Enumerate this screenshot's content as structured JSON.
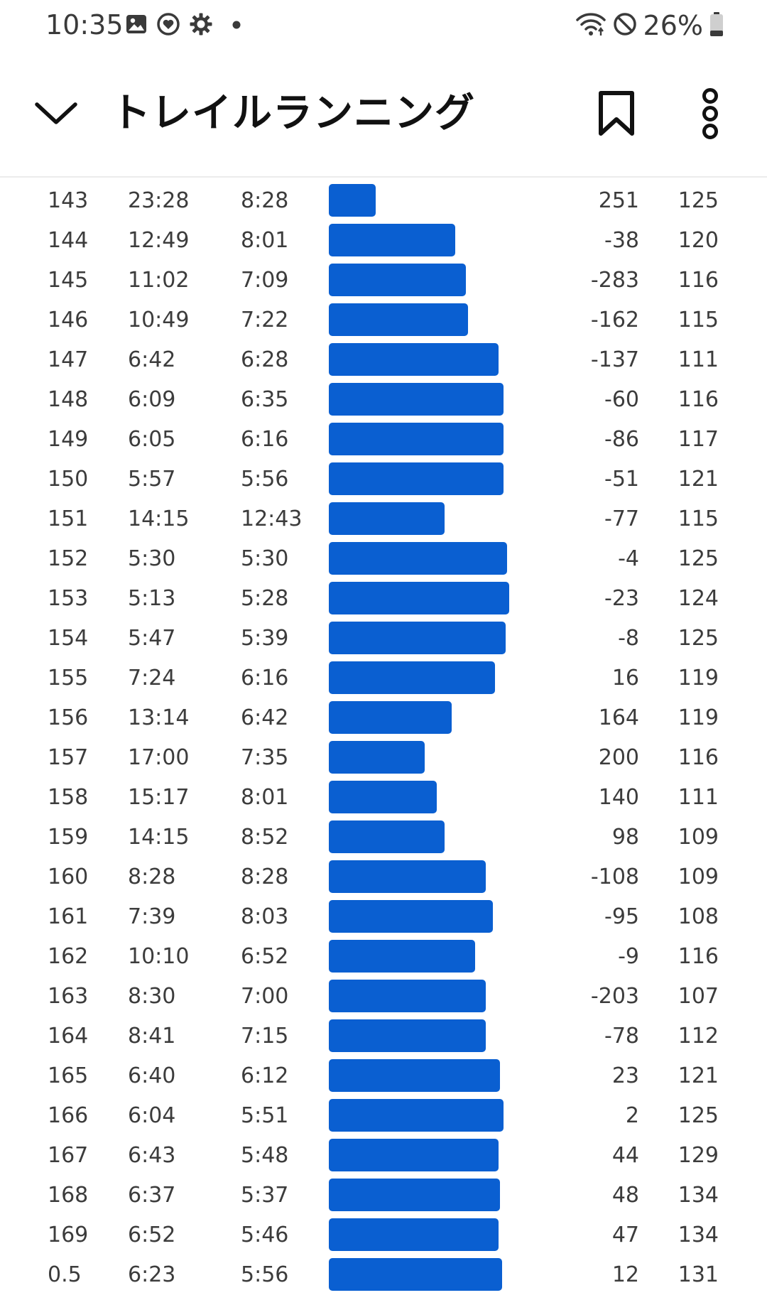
{
  "status_bar": {
    "time": "10:35",
    "left_icons": [
      "image-icon",
      "heart-app-icon",
      "settings-icon",
      "dot-icon"
    ],
    "right_icons": [
      "wifi-icon",
      "do-not-disturb-icon",
      "battery-icon"
    ],
    "battery": "26%",
    "battery_level": 0.26
  },
  "header": {
    "title": "トレイルランニング",
    "back_icon": "chevron-down-icon",
    "bookmark_icon": "bookmark-icon",
    "more_icon": "more-vertical-icon"
  },
  "colors": {
    "bar": "#0a5fd1",
    "text": "#3c3c3c",
    "title": "#111111"
  },
  "laps": [
    {
      "lap": "143",
      "time": "23:28",
      "pace": "8:28",
      "bar_fraction": 0.26,
      "elev": "251",
      "hr": "125"
    },
    {
      "lap": "144",
      "time": "12:49",
      "pace": "8:01",
      "bar_fraction": 0.7,
      "elev": "-38",
      "hr": "120"
    },
    {
      "lap": "145",
      "time": "11:02",
      "pace": "7:09",
      "bar_fraction": 0.76,
      "elev": "-283",
      "hr": "116"
    },
    {
      "lap": "146",
      "time": "10:49",
      "pace": "7:22",
      "bar_fraction": 0.77,
      "elev": "-162",
      "hr": "115"
    },
    {
      "lap": "147",
      "time": "6:42",
      "pace": "6:28",
      "bar_fraction": 0.94,
      "elev": "-137",
      "hr": "111"
    },
    {
      "lap": "148",
      "time": "6:09",
      "pace": "6:35",
      "bar_fraction": 0.97,
      "elev": "-60",
      "hr": "116"
    },
    {
      "lap": "149",
      "time": "6:05",
      "pace": "6:16",
      "bar_fraction": 0.97,
      "elev": "-86",
      "hr": "117"
    },
    {
      "lap": "150",
      "time": "5:57",
      "pace": "5:56",
      "bar_fraction": 0.97,
      "elev": "-51",
      "hr": "121"
    },
    {
      "lap": "151",
      "time": "14:15",
      "pace": "12:43",
      "bar_fraction": 0.64,
      "elev": "-77",
      "hr": "115"
    },
    {
      "lap": "152",
      "time": "5:30",
      "pace": "5:30",
      "bar_fraction": 0.99,
      "elev": "-4",
      "hr": "125"
    },
    {
      "lap": "153",
      "time": "5:13",
      "pace": "5:28",
      "bar_fraction": 1.0,
      "elev": "-23",
      "hr": "124"
    },
    {
      "lap": "154",
      "time": "5:47",
      "pace": "5:39",
      "bar_fraction": 0.98,
      "elev": "-8",
      "hr": "125"
    },
    {
      "lap": "155",
      "time": "7:24",
      "pace": "6:16",
      "bar_fraction": 0.92,
      "elev": "16",
      "hr": "119"
    },
    {
      "lap": "156",
      "time": "13:14",
      "pace": "6:42",
      "bar_fraction": 0.68,
      "elev": "164",
      "hr": "119"
    },
    {
      "lap": "157",
      "time": "17:00",
      "pace": "7:35",
      "bar_fraction": 0.53,
      "elev": "200",
      "hr": "116"
    },
    {
      "lap": "158",
      "time": "15:17",
      "pace": "8:01",
      "bar_fraction": 0.6,
      "elev": "140",
      "hr": "111"
    },
    {
      "lap": "159",
      "time": "14:15",
      "pace": "8:52",
      "bar_fraction": 0.64,
      "elev": "98",
      "hr": "109"
    },
    {
      "lap": "160",
      "time": "8:28",
      "pace": "8:28",
      "bar_fraction": 0.87,
      "elev": "-108",
      "hr": "109"
    },
    {
      "lap": "161",
      "time": "7:39",
      "pace": "8:03",
      "bar_fraction": 0.91,
      "elev": "-95",
      "hr": "108"
    },
    {
      "lap": "162",
      "time": "10:10",
      "pace": "6:52",
      "bar_fraction": 0.81,
      "elev": "-9",
      "hr": "116"
    },
    {
      "lap": "163",
      "time": "8:30",
      "pace": "7:00",
      "bar_fraction": 0.87,
      "elev": "-203",
      "hr": "107"
    },
    {
      "lap": "164",
      "time": "8:41",
      "pace": "7:15",
      "bar_fraction": 0.87,
      "elev": "-78",
      "hr": "112"
    },
    {
      "lap": "165",
      "time": "6:40",
      "pace": "6:12",
      "bar_fraction": 0.95,
      "elev": "23",
      "hr": "121"
    },
    {
      "lap": "166",
      "time": "6:04",
      "pace": "5:51",
      "bar_fraction": 0.97,
      "elev": "2",
      "hr": "125"
    },
    {
      "lap": "167",
      "time": "6:43",
      "pace": "5:48",
      "bar_fraction": 0.94,
      "elev": "44",
      "hr": "129"
    },
    {
      "lap": "168",
      "time": "6:37",
      "pace": "5:37",
      "bar_fraction": 0.95,
      "elev": "48",
      "hr": "134"
    },
    {
      "lap": "169",
      "time": "6:52",
      "pace": "5:46",
      "bar_fraction": 0.94,
      "elev": "47",
      "hr": "134"
    },
    {
      "lap": "0.5",
      "time": "6:23",
      "pace": "5:56",
      "bar_fraction": 0.96,
      "elev": "12",
      "hr": "131"
    }
  ]
}
